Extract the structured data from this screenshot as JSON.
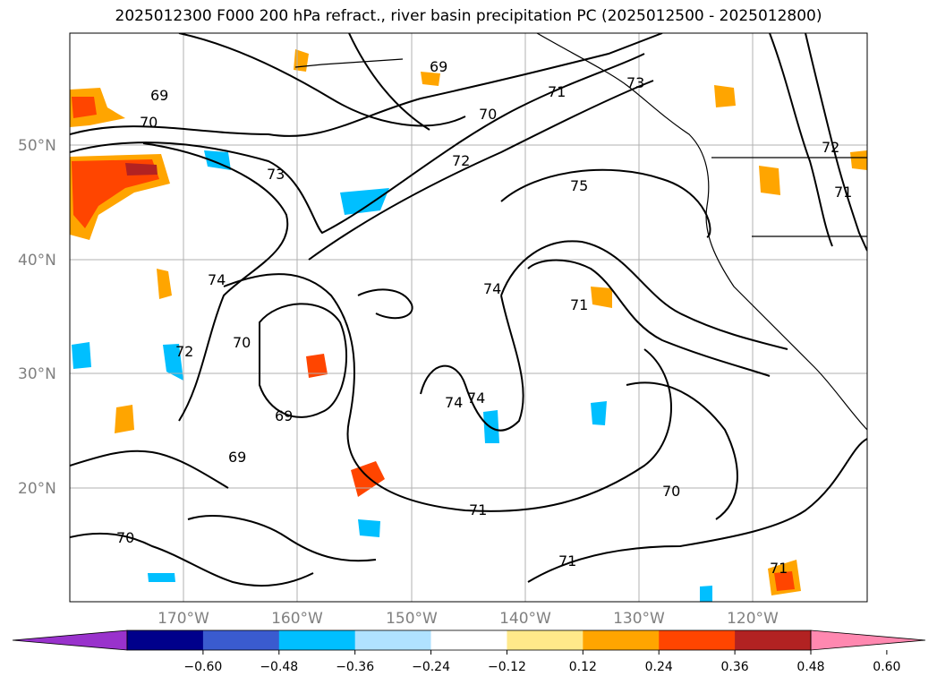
{
  "title": "2025012300 F000 200 hPa refract., river basin precipitation PC (2025012500 - 2025012800)",
  "map": {
    "lat_ticks": [
      "50°N",
      "40°N",
      "30°N",
      "20°N"
    ],
    "lat_values": [
      50,
      40,
      30,
      20
    ],
    "lon_ticks": [
      "170°W",
      "160°W",
      "150°W",
      "140°W",
      "130°W",
      "120°W"
    ],
    "lon_values": [
      -170,
      -160,
      -150,
      -140,
      -130,
      -120
    ],
    "lon_range": [
      -180,
      -110
    ],
    "lat_range": [
      10,
      60
    ],
    "contour_labels": [
      {
        "text": "69"
      },
      {
        "text": "70"
      },
      {
        "text": "73"
      },
      {
        "text": "69"
      },
      {
        "text": "71"
      },
      {
        "text": "73"
      },
      {
        "text": "70"
      },
      {
        "text": "72"
      },
      {
        "text": "75"
      },
      {
        "text": "72"
      },
      {
        "text": "71"
      },
      {
        "text": "74"
      },
      {
        "text": "74"
      },
      {
        "text": "71"
      },
      {
        "text": "72"
      },
      {
        "text": "70"
      },
      {
        "text": "69"
      },
      {
        "text": "69"
      },
      {
        "text": "74"
      },
      {
        "text": "74"
      },
      {
        "text": "71"
      },
      {
        "text": "70"
      },
      {
        "text": "71"
      },
      {
        "text": "70"
      },
      {
        "text": "71"
      }
    ]
  },
  "colorbar": {
    "ticks": [
      "−0.60",
      "−0.48",
      "−0.36",
      "−0.24",
      "−0.12",
      "0.12",
      "0.24",
      "0.36",
      "0.48",
      "0.60"
    ],
    "colors": [
      "#9932cc",
      "#00008b",
      "#3a5bcf",
      "#00bfff",
      "#b0e2ff",
      "#ffffff",
      "#ffe98a",
      "#ffa500",
      "#ff4500",
      "#b22222",
      "#ff88b0"
    ]
  }
}
